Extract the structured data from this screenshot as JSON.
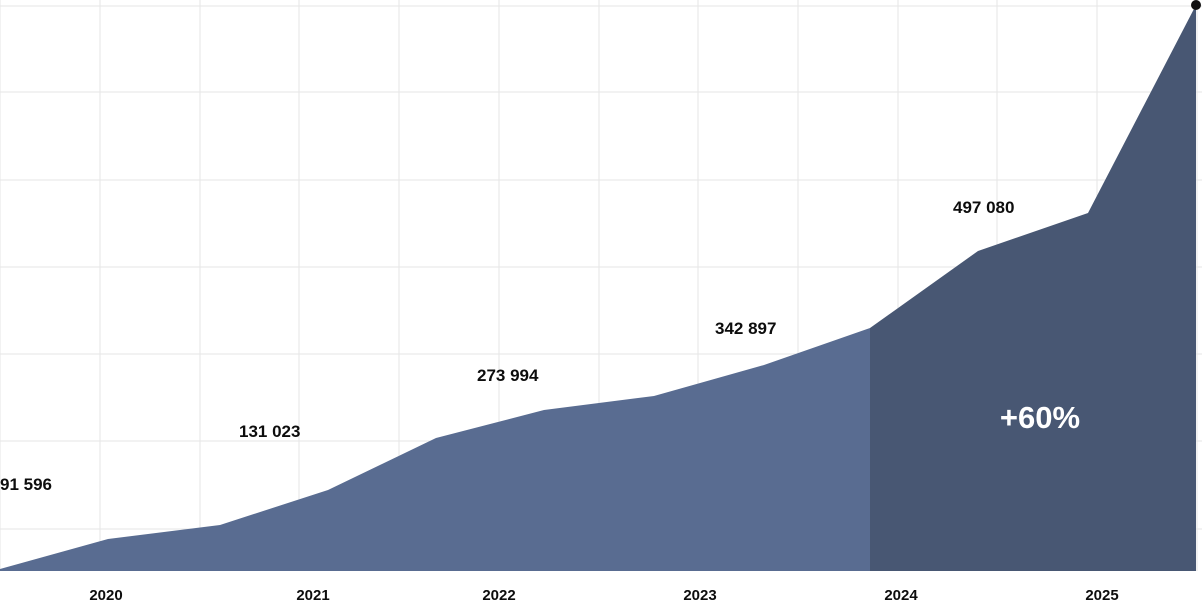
{
  "chart_data": {
    "type": "area",
    "x": [
      "2020",
      "2021",
      "2022",
      "2023",
      "2024",
      "2025"
    ],
    "series": [
      {
        "values": [
          91596,
          131023,
          273994,
          342897,
          497080,
          null
        ]
      }
    ],
    "data_labels": [
      "91 596",
      "131 023",
      "273 994",
      "342 897",
      "497 080"
    ],
    "annotation": "+60%",
    "colors": {
      "area": "#596c91",
      "highlight_area": "#485773",
      "grid": "#e6e6e6",
      "endpoint": "#111111"
    },
    "grid": true,
    "legend": "none"
  }
}
